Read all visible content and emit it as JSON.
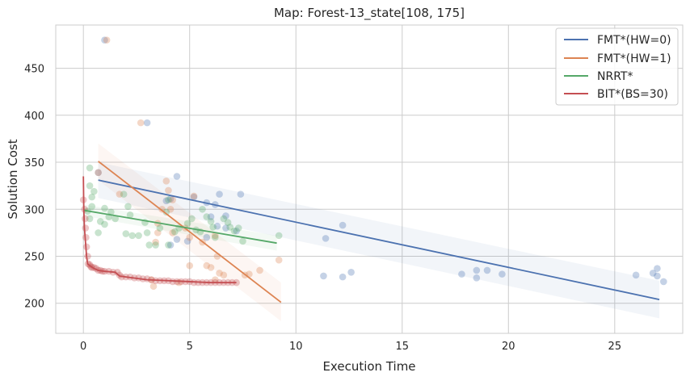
{
  "chart_data": {
    "type": "scatter",
    "title": "Map: Forest-13_state[108, 175]",
    "xlabel": "Execution Time",
    "ylabel": "Solution Cost",
    "xlim": [
      -1.3,
      28.2
    ],
    "ylim": [
      168,
      496
    ],
    "xticks": [
      0,
      5,
      10,
      15,
      20,
      25
    ],
    "yticks": [
      200,
      250,
      300,
      350,
      400,
      450
    ],
    "grid": true,
    "legend_position": "top-right",
    "series": [
      {
        "name": "FMT*(HW=0)",
        "color": "#4c72b0",
        "points": [
          [
            1.0,
            480
          ],
          [
            3.0,
            392
          ],
          [
            0.7,
            339
          ],
          [
            4.4,
            335
          ],
          [
            3.9,
            309
          ],
          [
            4.1,
            311
          ],
          [
            6.4,
            316
          ],
          [
            7.4,
            316
          ],
          [
            5.2,
            313
          ],
          [
            5.8,
            307
          ],
          [
            6.2,
            305
          ],
          [
            6.0,
            292
          ],
          [
            6.7,
            293
          ],
          [
            4.1,
            262
          ],
          [
            4.4,
            268
          ],
          [
            4.9,
            266
          ],
          [
            5.8,
            270
          ],
          [
            6.7,
            280
          ],
          [
            7.2,
            277
          ],
          [
            6.3,
            282
          ],
          [
            11.4,
            269
          ],
          [
            12.2,
            283
          ],
          [
            11.3,
            229
          ],
          [
            12.2,
            228
          ],
          [
            12.6,
            233
          ],
          [
            17.8,
            231
          ],
          [
            18.5,
            235
          ],
          [
            18.5,
            227
          ],
          [
            19.0,
            235
          ],
          [
            19.7,
            231
          ],
          [
            26.0,
            230
          ],
          [
            26.8,
            232
          ],
          [
            27.0,
            237
          ],
          [
            27.0,
            229
          ],
          [
            27.3,
            223
          ]
        ],
        "fit": {
          "x": [
            0.7,
            27.1
          ],
          "y": [
            331,
            204
          ]
        },
        "band": {
          "x": [
            0.7,
            27.1
          ],
          "upper": [
            350,
            224
          ],
          "lower": [
            312,
            184
          ]
        }
      },
      {
        "name": "FMT*(HW=1)",
        "color": "#dd8452",
        "points": [
          [
            1.1,
            480
          ],
          [
            2.7,
            392
          ],
          [
            0.7,
            339
          ],
          [
            3.9,
            330
          ],
          [
            4.0,
            320
          ],
          [
            5.2,
            314
          ],
          [
            4.1,
            300
          ],
          [
            4.2,
            310
          ],
          [
            3.7,
            300
          ],
          [
            3.5,
            285
          ],
          [
            3.5,
            275
          ],
          [
            3.4,
            265
          ],
          [
            4.2,
            275
          ],
          [
            4.8,
            280
          ],
          [
            5.0,
            270
          ],
          [
            5.6,
            265
          ],
          [
            6.2,
            272
          ],
          [
            6.3,
            250
          ],
          [
            5.0,
            240
          ],
          [
            6.0,
            238
          ],
          [
            6.4,
            232
          ],
          [
            6.2,
            225
          ],
          [
            6.6,
            230
          ],
          [
            3.2,
            225
          ],
          [
            3.3,
            218
          ],
          [
            4.5,
            222
          ],
          [
            7.6,
            230
          ],
          [
            7.8,
            231
          ],
          [
            8.3,
            235
          ],
          [
            9.2,
            246
          ],
          [
            1.7,
            316
          ],
          [
            5.8,
            240
          ]
        ],
        "fit": {
          "x": [
            0.7,
            9.3
          ],
          "y": [
            351,
            201
          ]
        },
        "band": {
          "x": [
            0.7,
            9.3
          ],
          "upper": [
            370,
            222
          ],
          "lower": [
            331,
            181
          ]
        }
      },
      {
        "name": "NRRT*",
        "color": "#55a868",
        "points": [
          [
            0.3,
            344
          ],
          [
            0.3,
            325
          ],
          [
            0.5,
            319
          ],
          [
            0.4,
            313
          ],
          [
            0.4,
            303
          ],
          [
            0.2,
            298
          ],
          [
            0.3,
            290
          ],
          [
            0.7,
            275
          ],
          [
            0.8,
            287
          ],
          [
            1.0,
            301
          ],
          [
            1.0,
            284
          ],
          [
            1.2,
            292
          ],
          [
            1.3,
            297
          ],
          [
            1.5,
            290
          ],
          [
            1.9,
            316
          ],
          [
            2.1,
            303
          ],
          [
            2.2,
            294
          ],
          [
            2.0,
            274
          ],
          [
            2.3,
            272
          ],
          [
            2.6,
            272
          ],
          [
            2.9,
            286
          ],
          [
            3.0,
            275
          ],
          [
            3.1,
            262
          ],
          [
            3.4,
            262
          ],
          [
            3.6,
            280
          ],
          [
            3.9,
            297
          ],
          [
            4.0,
            310
          ],
          [
            4.0,
            262
          ],
          [
            4.3,
            276
          ],
          [
            4.5,
            280
          ],
          [
            4.9,
            285
          ],
          [
            5.1,
            290
          ],
          [
            5.3,
            278
          ],
          [
            5.5,
            276
          ],
          [
            5.8,
            292
          ],
          [
            6.0,
            287
          ],
          [
            6.1,
            281
          ],
          [
            6.2,
            270
          ],
          [
            6.6,
            290
          ],
          [
            6.8,
            286
          ],
          [
            6.9,
            281
          ],
          [
            7.1,
            277
          ],
          [
            7.3,
            280
          ],
          [
            7.5,
            266
          ],
          [
            9.2,
            272
          ],
          [
            5.6,
            300
          ]
        ],
        "fit": {
          "x": [
            0.0,
            9.1
          ],
          "y": [
            299,
            264
          ]
        },
        "band": {
          "x": [
            0.0,
            9.1
          ],
          "upper": [
            305,
            272
          ],
          "lower": [
            293,
            256
          ]
        }
      },
      {
        "name": "BIT*(BS=30)",
        "color": "#c44e52",
        "points": [
          [
            0.0,
            310
          ],
          [
            0.05,
            300
          ],
          [
            0.08,
            290
          ],
          [
            0.1,
            280
          ],
          [
            0.12,
            270
          ],
          [
            0.15,
            260
          ],
          [
            0.2,
            250
          ],
          [
            0.22,
            242
          ],
          [
            0.3,
            241
          ],
          [
            0.35,
            239
          ],
          [
            0.4,
            238
          ],
          [
            0.5,
            238
          ],
          [
            0.6,
            237
          ],
          [
            0.7,
            235
          ],
          [
            0.8,
            235
          ],
          [
            0.9,
            234
          ],
          [
            1.0,
            234
          ],
          [
            1.2,
            234
          ],
          [
            1.4,
            233
          ],
          [
            1.6,
            233
          ],
          [
            1.7,
            230
          ],
          [
            1.8,
            228
          ],
          [
            2.0,
            228
          ],
          [
            2.2,
            228
          ],
          [
            2.4,
            227
          ],
          [
            2.6,
            227
          ],
          [
            2.8,
            226
          ],
          [
            3.0,
            226
          ],
          [
            3.2,
            225
          ],
          [
            3.4,
            224
          ],
          [
            3.6,
            224
          ],
          [
            3.8,
            224
          ],
          [
            4.0,
            224
          ],
          [
            4.2,
            223
          ],
          [
            4.4,
            223
          ],
          [
            4.6,
            223
          ],
          [
            4.8,
            223
          ],
          [
            5.0,
            223
          ],
          [
            5.2,
            222
          ],
          [
            5.4,
            222
          ],
          [
            5.6,
            222
          ],
          [
            5.8,
            222
          ],
          [
            6.0,
            222
          ],
          [
            6.2,
            222
          ],
          [
            6.4,
            222
          ],
          [
            6.6,
            222
          ],
          [
            6.8,
            222
          ],
          [
            7.0,
            222
          ],
          [
            7.2,
            222
          ]
        ],
        "fit_path": {
          "x": [
            0.0,
            0.02,
            0.05,
            0.1,
            0.15,
            0.2,
            0.3,
            0.5,
            0.7,
            1.0,
            1.5,
            1.7,
            2.0,
            3.0,
            4.0,
            5.0,
            6.0,
            7.2
          ],
          "y": [
            335,
            300,
            280,
            265,
            250,
            242,
            240,
            237,
            235,
            234,
            233,
            229,
            228,
            225,
            224,
            223,
            222,
            222
          ]
        }
      }
    ]
  }
}
